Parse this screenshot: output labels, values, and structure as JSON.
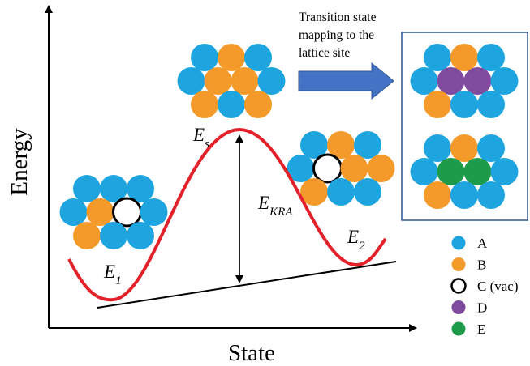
{
  "axes": {
    "y_label": "Energy",
    "x_label": "State"
  },
  "labels": {
    "e1": {
      "main": "E",
      "sub": "1"
    },
    "es": {
      "main": "E",
      "sub": "s"
    },
    "ekra": {
      "main": "E",
      "sub": "KRA"
    },
    "e2": {
      "main": "E",
      "sub": "2"
    }
  },
  "annotation": {
    "lines": [
      "Transition state",
      "mapping to the",
      "lattice site"
    ]
  },
  "legend": [
    "A",
    "B",
    "C (vac)",
    "D",
    "E"
  ]
}
